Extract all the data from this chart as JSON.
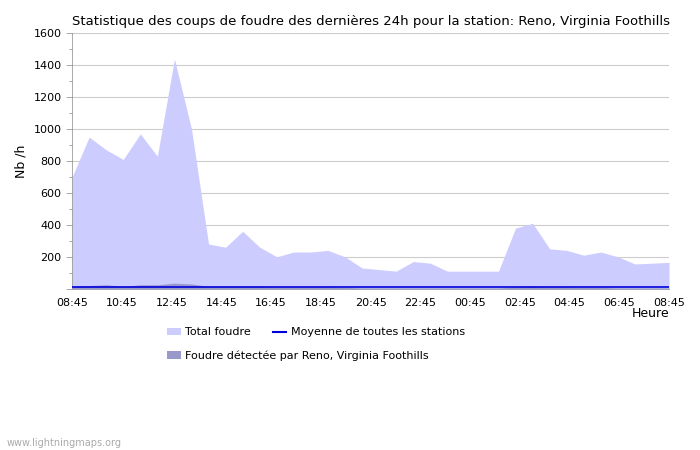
{
  "title": "Statistique des coups de foudre des dernières 24h pour la station: Reno, Virginia Foothills",
  "ylabel": "Nb /h",
  "xlabel": "Heure",
  "watermark": "www.lightningmaps.org",
  "xlabels": [
    "08:45",
    "10:45",
    "12:45",
    "14:45",
    "16:45",
    "18:45",
    "20:45",
    "22:45",
    "00:45",
    "02:45",
    "04:45",
    "06:45",
    "08:45"
  ],
  "ylim": [
    0,
    1600
  ],
  "yticks": [
    0,
    200,
    400,
    600,
    800,
    1000,
    1200,
    1400,
    1600
  ],
  "bg_color": "#ffffff",
  "grid_color": "#cccccc",
  "total_foudre_color": "#ccccff",
  "detected_color": "#9999cc",
  "mean_line_color": "#0000dd",
  "legend_total": "Total foudre",
  "legend_mean": "Moyenne de toutes les stations",
  "legend_detected": "Foudre détectée par Reno, Virginia Foothills",
  "total_foudre": [
    700,
    950,
    870,
    810,
    970,
    830,
    1440,
    1000,
    280,
    260,
    360,
    260,
    200,
    230,
    230,
    240,
    200,
    130,
    120,
    110,
    170,
    160,
    110,
    110,
    110,
    110,
    380,
    410,
    250,
    240,
    210,
    230,
    200,
    155,
    160,
    165
  ],
  "detected": [
    15,
    20,
    25,
    15,
    25,
    25,
    35,
    30,
    15,
    15,
    15,
    15,
    10,
    10,
    10,
    10,
    8,
    5,
    5,
    5,
    5,
    5,
    5,
    5,
    5,
    5,
    10,
    15,
    10,
    10,
    8,
    8,
    5,
    5,
    5,
    5
  ],
  "mean_line": [
    8,
    8,
    8,
    8,
    8,
    8,
    8,
    8,
    8,
    8,
    8,
    8,
    8,
    8,
    8,
    8,
    8,
    8,
    8,
    8,
    8,
    8,
    8,
    8,
    8,
    8,
    8,
    8,
    8,
    8,
    8,
    8,
    8,
    8,
    8,
    8
  ]
}
